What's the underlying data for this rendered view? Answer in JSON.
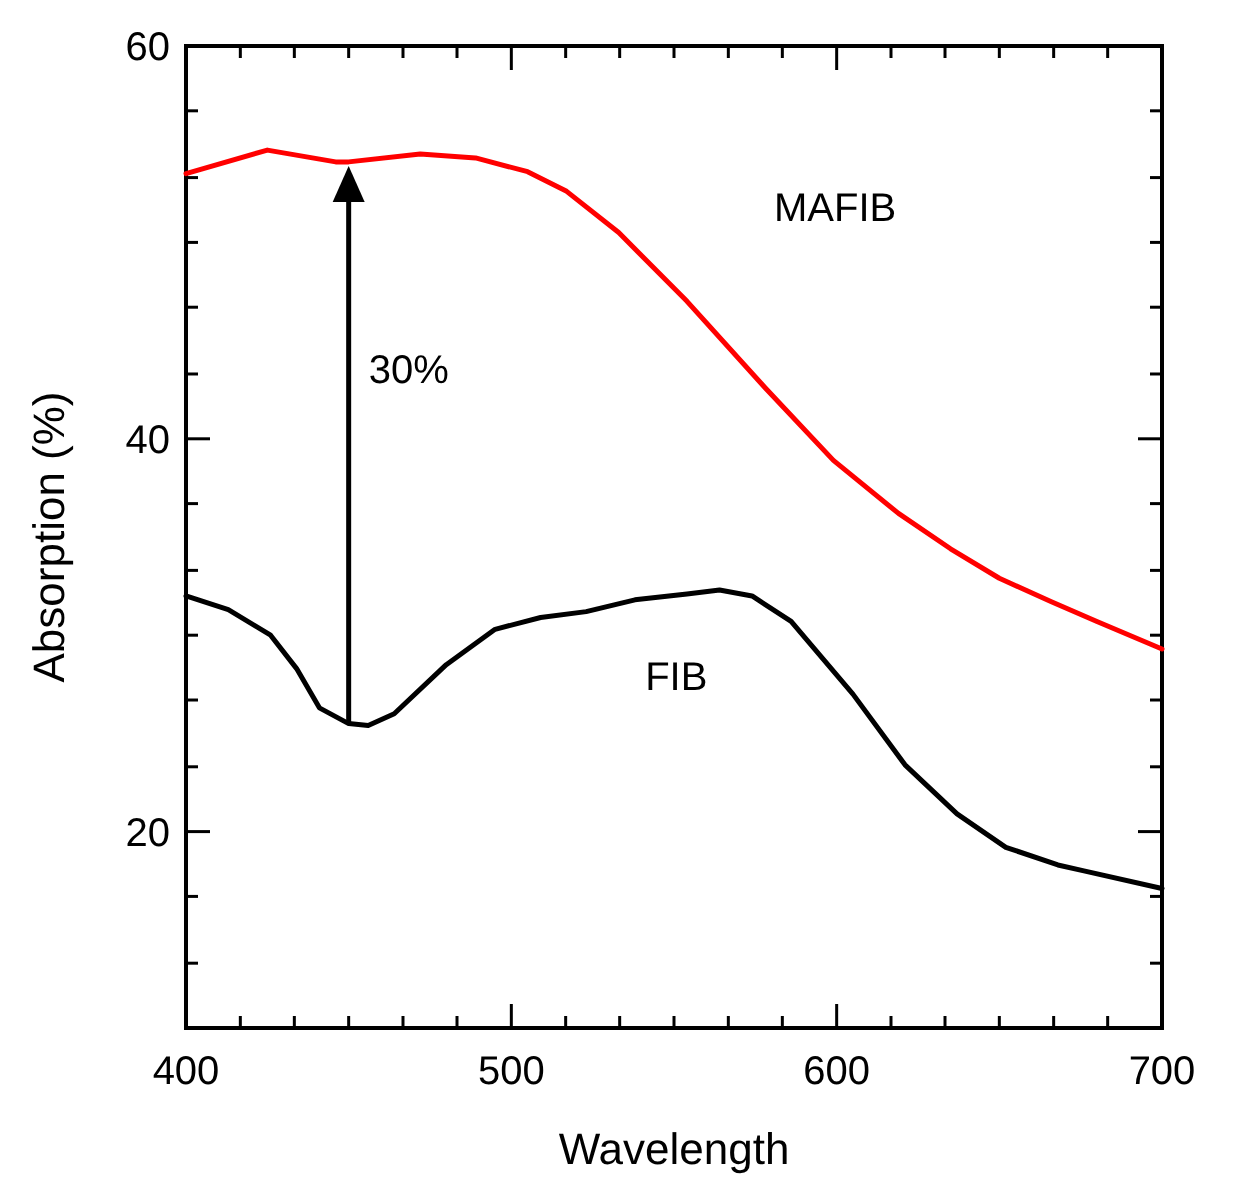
{
  "chart_data": {
    "type": "line",
    "xlabel": "Wavelength",
    "ylabel": "Absorption (%)",
    "xlim": [
      400,
      700
    ],
    "ylim": [
      10,
      60
    ],
    "xticks": [
      400,
      {
        "value": 416.7,
        "label": null
      },
      {
        "value": 433.3,
        "label": null
      },
      {
        "value": 450,
        "label": null
      },
      {
        "value": 466.7,
        "label": null
      },
      {
        "value": 483.3,
        "label": null
      },
      500,
      {
        "value": 516.7,
        "label": null
      },
      {
        "value": 533.3,
        "label": null
      },
      {
        "value": 550,
        "label": null
      },
      {
        "value": 566.7,
        "label": null
      },
      {
        "value": 583.3,
        "label": null
      },
      600,
      {
        "value": 616.7,
        "label": null
      },
      {
        "value": 633.3,
        "label": null
      },
      {
        "value": 650,
        "label": null
      },
      {
        "value": 666.7,
        "label": null
      },
      {
        "value": 683.3,
        "label": null
      },
      700
    ],
    "yticks": [
      {
        "value": 10,
        "label": null
      },
      {
        "value": 13.3,
        "label": null
      },
      {
        "value": 16.7,
        "label": null
      },
      20,
      {
        "value": 23.3,
        "label": null
      },
      {
        "value": 26.7,
        "label": null
      },
      {
        "value": 30,
        "label": null
      },
      {
        "value": 33.3,
        "label": null
      },
      {
        "value": 36.7,
        "label": null
      },
      40,
      {
        "value": 43.3,
        "label": null
      },
      {
        "value": 46.7,
        "label": null
      },
      {
        "value": 50,
        "label": null
      },
      {
        "value": 53.3,
        "label": null
      },
      {
        "value": 56.7,
        "label": null
      },
      60
    ],
    "line_style": "solid",
    "annotations": [
      "30%"
    ],
    "series": [
      {
        "name": "MAFIB",
        "color": "#ff0000",
        "x": [
          400,
          425,
          446,
          450,
          472,
          489,
          505,
          517,
          533,
          554,
          578,
          599,
          619,
          635,
          650,
          666,
          680,
          700
        ],
        "values": [
          53.5,
          54.7,
          54.1,
          54.1,
          54.5,
          54.3,
          53.6,
          52.6,
          50.5,
          47.0,
          42.6,
          38.9,
          36.2,
          34.4,
          32.9,
          31.7,
          30.7,
          29.3
        ]
      },
      {
        "name": "FIB",
        "color": "#000000",
        "x": [
          400,
          413,
          426,
          434,
          441,
          450,
          456,
          464,
          480,
          495,
          509,
          523,
          538,
          554,
          564,
          574,
          586,
          605,
          621,
          637,
          652,
          668,
          676,
          700
        ],
        "values": [
          32.0,
          31.3,
          30.0,
          28.3,
          26.3,
          25.5,
          25.4,
          26.0,
          28.5,
          30.3,
          30.9,
          31.2,
          31.8,
          32.1,
          32.3,
          32.0,
          30.7,
          27.0,
          23.4,
          20.9,
          19.2,
          18.3,
          18.0,
          17.1
        ]
      }
    ]
  }
}
